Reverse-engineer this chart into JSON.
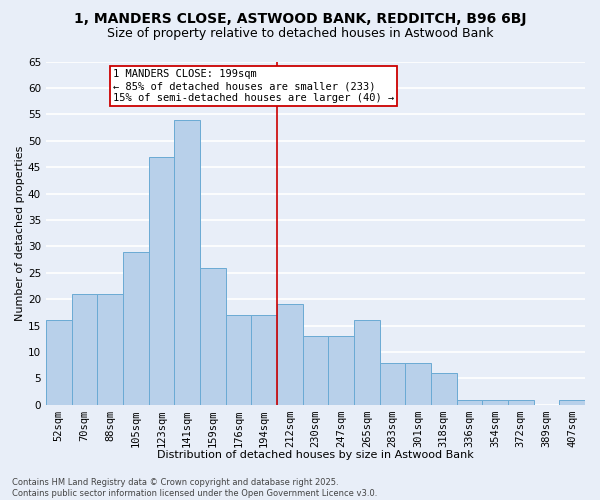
{
  "title1": "1, MANDERS CLOSE, ASTWOOD BANK, REDDITCH, B96 6BJ",
  "title2": "Size of property relative to detached houses in Astwood Bank",
  "xlabel": "Distribution of detached houses by size in Astwood Bank",
  "ylabel": "Number of detached properties",
  "categories": [
    "52sqm",
    "70sqm",
    "88sqm",
    "105sqm",
    "123sqm",
    "141sqm",
    "159sqm",
    "176sqm",
    "194sqm",
    "212sqm",
    "230sqm",
    "247sqm",
    "265sqm",
    "283sqm",
    "301sqm",
    "318sqm",
    "336sqm",
    "354sqm",
    "372sqm",
    "389sqm",
    "407sqm"
  ],
  "values": [
    16,
    21,
    21,
    29,
    47,
    54,
    26,
    17,
    17,
    19,
    13,
    13,
    16,
    8,
    8,
    6,
    1,
    1,
    1,
    0,
    1
  ],
  "bar_color": "#b8d0ea",
  "bar_edge_color": "#6aaad4",
  "background_color": "#e8eef8",
  "grid_color": "#ffffff",
  "vline_color": "#cc0000",
  "annotation_text": "1 MANDERS CLOSE: 199sqm\n← 85% of detached houses are smaller (233)\n15% of semi-detached houses are larger (40) →",
  "annotation_box_color": "#cc0000",
  "ylim": [
    0,
    65
  ],
  "yticks": [
    0,
    5,
    10,
    15,
    20,
    25,
    30,
    35,
    40,
    45,
    50,
    55,
    60,
    65
  ],
  "footer": "Contains HM Land Registry data © Crown copyright and database right 2025.\nContains public sector information licensed under the Open Government Licence v3.0.",
  "title1_fontsize": 10,
  "title2_fontsize": 9,
  "axis_label_fontsize": 8,
  "tick_fontsize": 7.5,
  "annotation_fontsize": 7.5,
  "footer_fontsize": 6
}
